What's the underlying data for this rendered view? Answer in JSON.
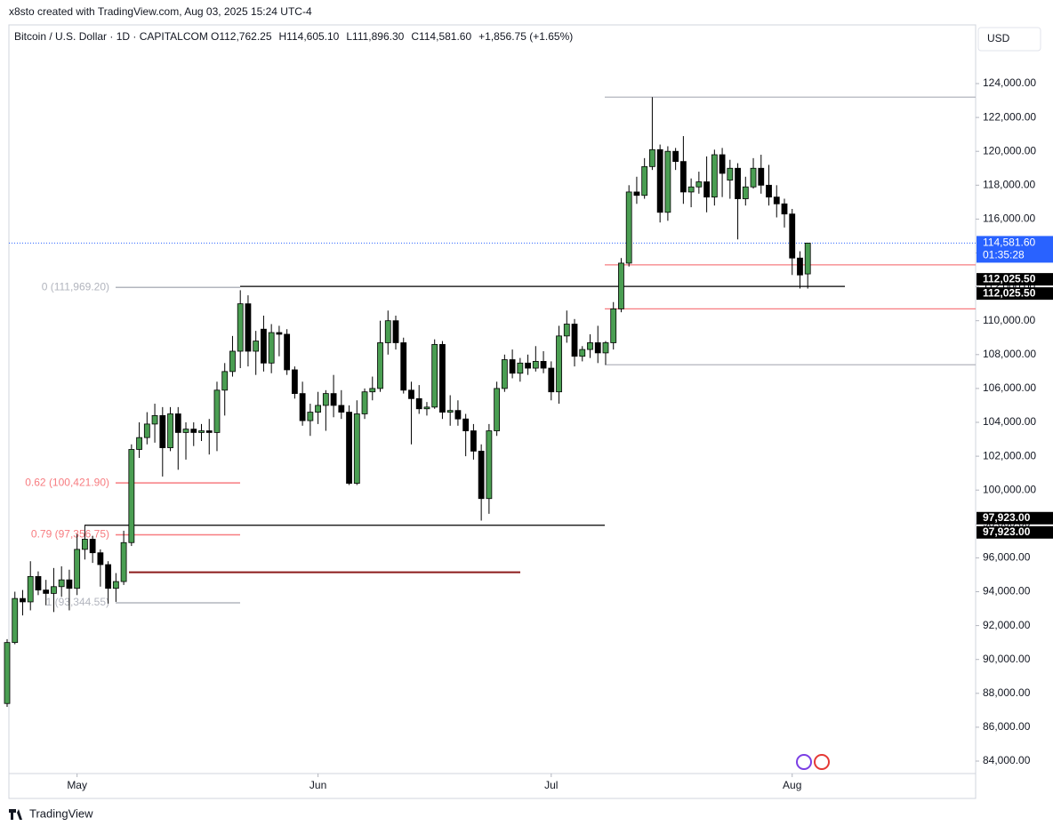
{
  "header": {
    "credit": "x8sto created with TradingView.com, Aug 03, 2025 15:24 UTC-4",
    "footer": "TradingView"
  },
  "chart_data": {
    "type": "candlestick",
    "title": "Bitcoin / U.S. Dollar · 1D · CAPITALCOM",
    "ohlc_text": [
      "O112,762.25",
      "H114,605.10",
      "L111,896.30",
      "C114,581.60",
      "+1,856.75 (+1.65%)"
    ],
    "currency": "USD",
    "up_color": "#4a9e52",
    "down_color": "#000000",
    "open": [
      87400,
      91000,
      93600,
      93400,
      94900,
      94100,
      93900,
      94300,
      94700,
      94200,
      96500,
      97100,
      96300,
      95600,
      94200,
      94600,
      96900,
      102400,
      103100,
      103900,
      104400,
      102500,
      104500,
      103400,
      103600,
      103400,
      103500,
      103400,
      105900,
      107000,
      108200,
      111000,
      108200,
      109500,
      107500,
      109300,
      109200,
      107100,
      105700,
      104100,
      104600,
      105000,
      105700,
      105000,
      104600,
      100400,
      104500,
      105800,
      106000,
      108700,
      110000,
      108700,
      105900,
      105400,
      104800,
      104900,
      108600,
      104600,
      104700,
      104200,
      103500,
      102300,
      99500,
      103500,
      106000,
      107700,
      106900,
      107500,
      107200,
      107600,
      107200,
      105800,
      109100,
      109800,
      107900,
      108300,
      108700,
      108100,
      108700,
      110700,
      113400,
      117600,
      117400,
      119100,
      120100,
      116400,
      120000,
      119400,
      117600,
      117900,
      118200,
      117300,
      119800,
      118300,
      119000,
      117200,
      117900,
      119000,
      118000,
      117300,
      116900,
      116300,
      113700,
      112762.25
    ],
    "high": [
      91200,
      94000,
      94100,
      95800,
      95200,
      94700,
      95400,
      95500,
      95300,
      97400,
      97900,
      97300,
      96500,
      95800,
      95100,
      97600,
      102700,
      104000,
      104600,
      105100,
      104900,
      104900,
      104900,
      104000,
      104000,
      103900,
      104200,
      106400,
      107500,
      109100,
      111800,
      111500,
      109400,
      110300,
      109800,
      109700,
      109500,
      107300,
      106400,
      105100,
      105800,
      105900,
      106800,
      105900,
      105000,
      105300,
      106000,
      106700,
      110000,
      110600,
      110300,
      109000,
      106400,
      106200,
      105200,
      108900,
      108800,
      105600,
      105300,
      104500,
      103900,
      102700,
      103900,
      106400,
      108000,
      108300,
      107800,
      108000,
      108500,
      108200,
      107600,
      109700,
      110600,
      110100,
      108500,
      109200,
      109700,
      108800,
      111100,
      113700,
      118000,
      118500,
      119600,
      123200,
      120400,
      120300,
      120200,
      120900,
      118400,
      118800,
      119700,
      120100,
      120200,
      119500,
      119300,
      118500,
      119600,
      119800,
      119200,
      118000,
      117200,
      116600,
      114100,
      114605.1
    ],
    "low": [
      87200,
      90900,
      92600,
      92900,
      93800,
      93200,
      92800,
      93700,
      92900,
      93800,
      95900,
      95700,
      94300,
      93300,
      93400,
      94400,
      96700,
      101900,
      102700,
      102800,
      100800,
      102300,
      101200,
      101800,
      102600,
      102900,
      102100,
      102300,
      104400,
      106700,
      107200,
      107300,
      106800,
      107000,
      106900,
      107900,
      106800,
      105400,
      103800,
      103200,
      103900,
      103500,
      104300,
      104200,
      100300,
      100300,
      104200,
      105300,
      105800,
      108000,
      108300,
      105700,
      102700,
      104500,
      104400,
      104800,
      104200,
      103800,
      103800,
      102000,
      101800,
      98200,
      98600,
      103200,
      105800,
      106600,
      106400,
      106800,
      107000,
      106900,
      105300,
      105100,
      108700,
      107300,
      107600,
      107800,
      107500,
      107400,
      108300,
      110500,
      113200,
      116900,
      117200,
      118900,
      115800,
      115900,
      118900,
      116900,
      116700,
      117500,
      116400,
      116800,
      117300,
      117200,
      114800,
      116800,
      117800,
      117500,
      116800,
      116100,
      115500,
      112700,
      111900,
      111896.3
    ],
    "close": [
      91000,
      93600,
      93400,
      94900,
      94100,
      93900,
      94300,
      94700,
      94200,
      96500,
      97100,
      96300,
      95600,
      94200,
      94600,
      96900,
      102400,
      103100,
      103900,
      104400,
      102500,
      104500,
      103400,
      103600,
      103400,
      103500,
      103400,
      105900,
      107000,
      108200,
      111000,
      108200,
      108800,
      107500,
      109300,
      109200,
      107100,
      105700,
      104100,
      104600,
      105000,
      105700,
      105000,
      104600,
      100400,
      104500,
      105800,
      106000,
      108700,
      110000,
      108700,
      105900,
      105400,
      104800,
      104900,
      108600,
      104600,
      104700,
      104200,
      103500,
      102300,
      99500,
      103500,
      106000,
      107700,
      106900,
      107500,
      107200,
      107600,
      107200,
      105800,
      109100,
      109800,
      107900,
      108300,
      108700,
      108100,
      108700,
      110700,
      113400,
      117600,
      117400,
      119100,
      120100,
      116400,
      120000,
      119400,
      117600,
      117900,
      118200,
      117300,
      119800,
      118700,
      119000,
      117200,
      117900,
      119000,
      118000,
      117300,
      116900,
      116300,
      113700,
      112700,
      114581.6
    ],
    "xticks": [
      {
        "value": 9,
        "label": "May"
      },
      {
        "value": 40,
        "label": "Jun"
      },
      {
        "value": 70,
        "label": "Jul"
      },
      {
        "value": 101,
        "label": "Aug"
      }
    ],
    "ylim": [
      83265,
      127465
    ],
    "yticks": [
      {
        "value": 124000,
        "label": "124,000.00"
      },
      {
        "value": 122000,
        "label": "122,000.00"
      },
      {
        "value": 120000,
        "label": "120,000.00"
      },
      {
        "value": 118000,
        "label": "118,000.00"
      },
      {
        "value": 116000,
        "label": "116,000.00"
      },
      {
        "value": 114000,
        "label": "114,000.00"
      },
      {
        "value": 112000,
        "label": "112,000.00"
      },
      {
        "value": 110000,
        "label": "110,000.00"
      },
      {
        "value": 108000,
        "label": "108,000.00"
      },
      {
        "value": 106000,
        "label": "106,000.00"
      },
      {
        "value": 104000,
        "label": "104,000.00"
      },
      {
        "value": 102000,
        "label": "102,000.00"
      },
      {
        "value": 100000,
        "label": "100,000.00"
      },
      {
        "value": 98000,
        "label": "98,000.00"
      },
      {
        "value": 96000,
        "label": "96,000.00"
      },
      {
        "value": 94000,
        "label": "94,000.00"
      },
      {
        "value": 92000,
        "label": "92,000.00"
      },
      {
        "value": 90000,
        "label": "90,000.00"
      },
      {
        "value": 88000,
        "label": "88,000.00"
      },
      {
        "value": 86000,
        "label": "86,000.00"
      },
      {
        "value": 84000,
        "label": "84,000.00"
      }
    ],
    "last_price": {
      "value": 114581.6,
      "label": "114,581.60",
      "countdown": "01:35:28",
      "color": "#2962ff"
    },
    "levels": [
      {
        "value": 112025.5,
        "label": "112,025.50",
        "color": "#000000"
      },
      {
        "value": 97923,
        "label": "97,923.00",
        "color": "#000000"
      },
      {
        "value": 113300,
        "color": "#f77c80"
      },
      {
        "value": 110700,
        "color": "#f77c80"
      },
      {
        "value": 123200,
        "color": "#b2b5be"
      },
      {
        "value": 107400,
        "color": "#b2b5be"
      },
      {
        "value": 95150,
        "color": "#8b1a1a"
      }
    ],
    "fib": [
      {
        "value": 111969.2,
        "label": "0 (111,969.20)",
        "color": "#b2b5be"
      },
      {
        "value": 100421.9,
        "label": "0.62 (100,421.90)",
        "color": "#f77c80"
      },
      {
        "value": 97356.75,
        "label": "0.79 (97,356.75)",
        "color": "#f77c80"
      },
      {
        "value": 93344.55,
        "label": "1 (93,344.55)",
        "color": "#b2b5be"
      }
    ]
  }
}
